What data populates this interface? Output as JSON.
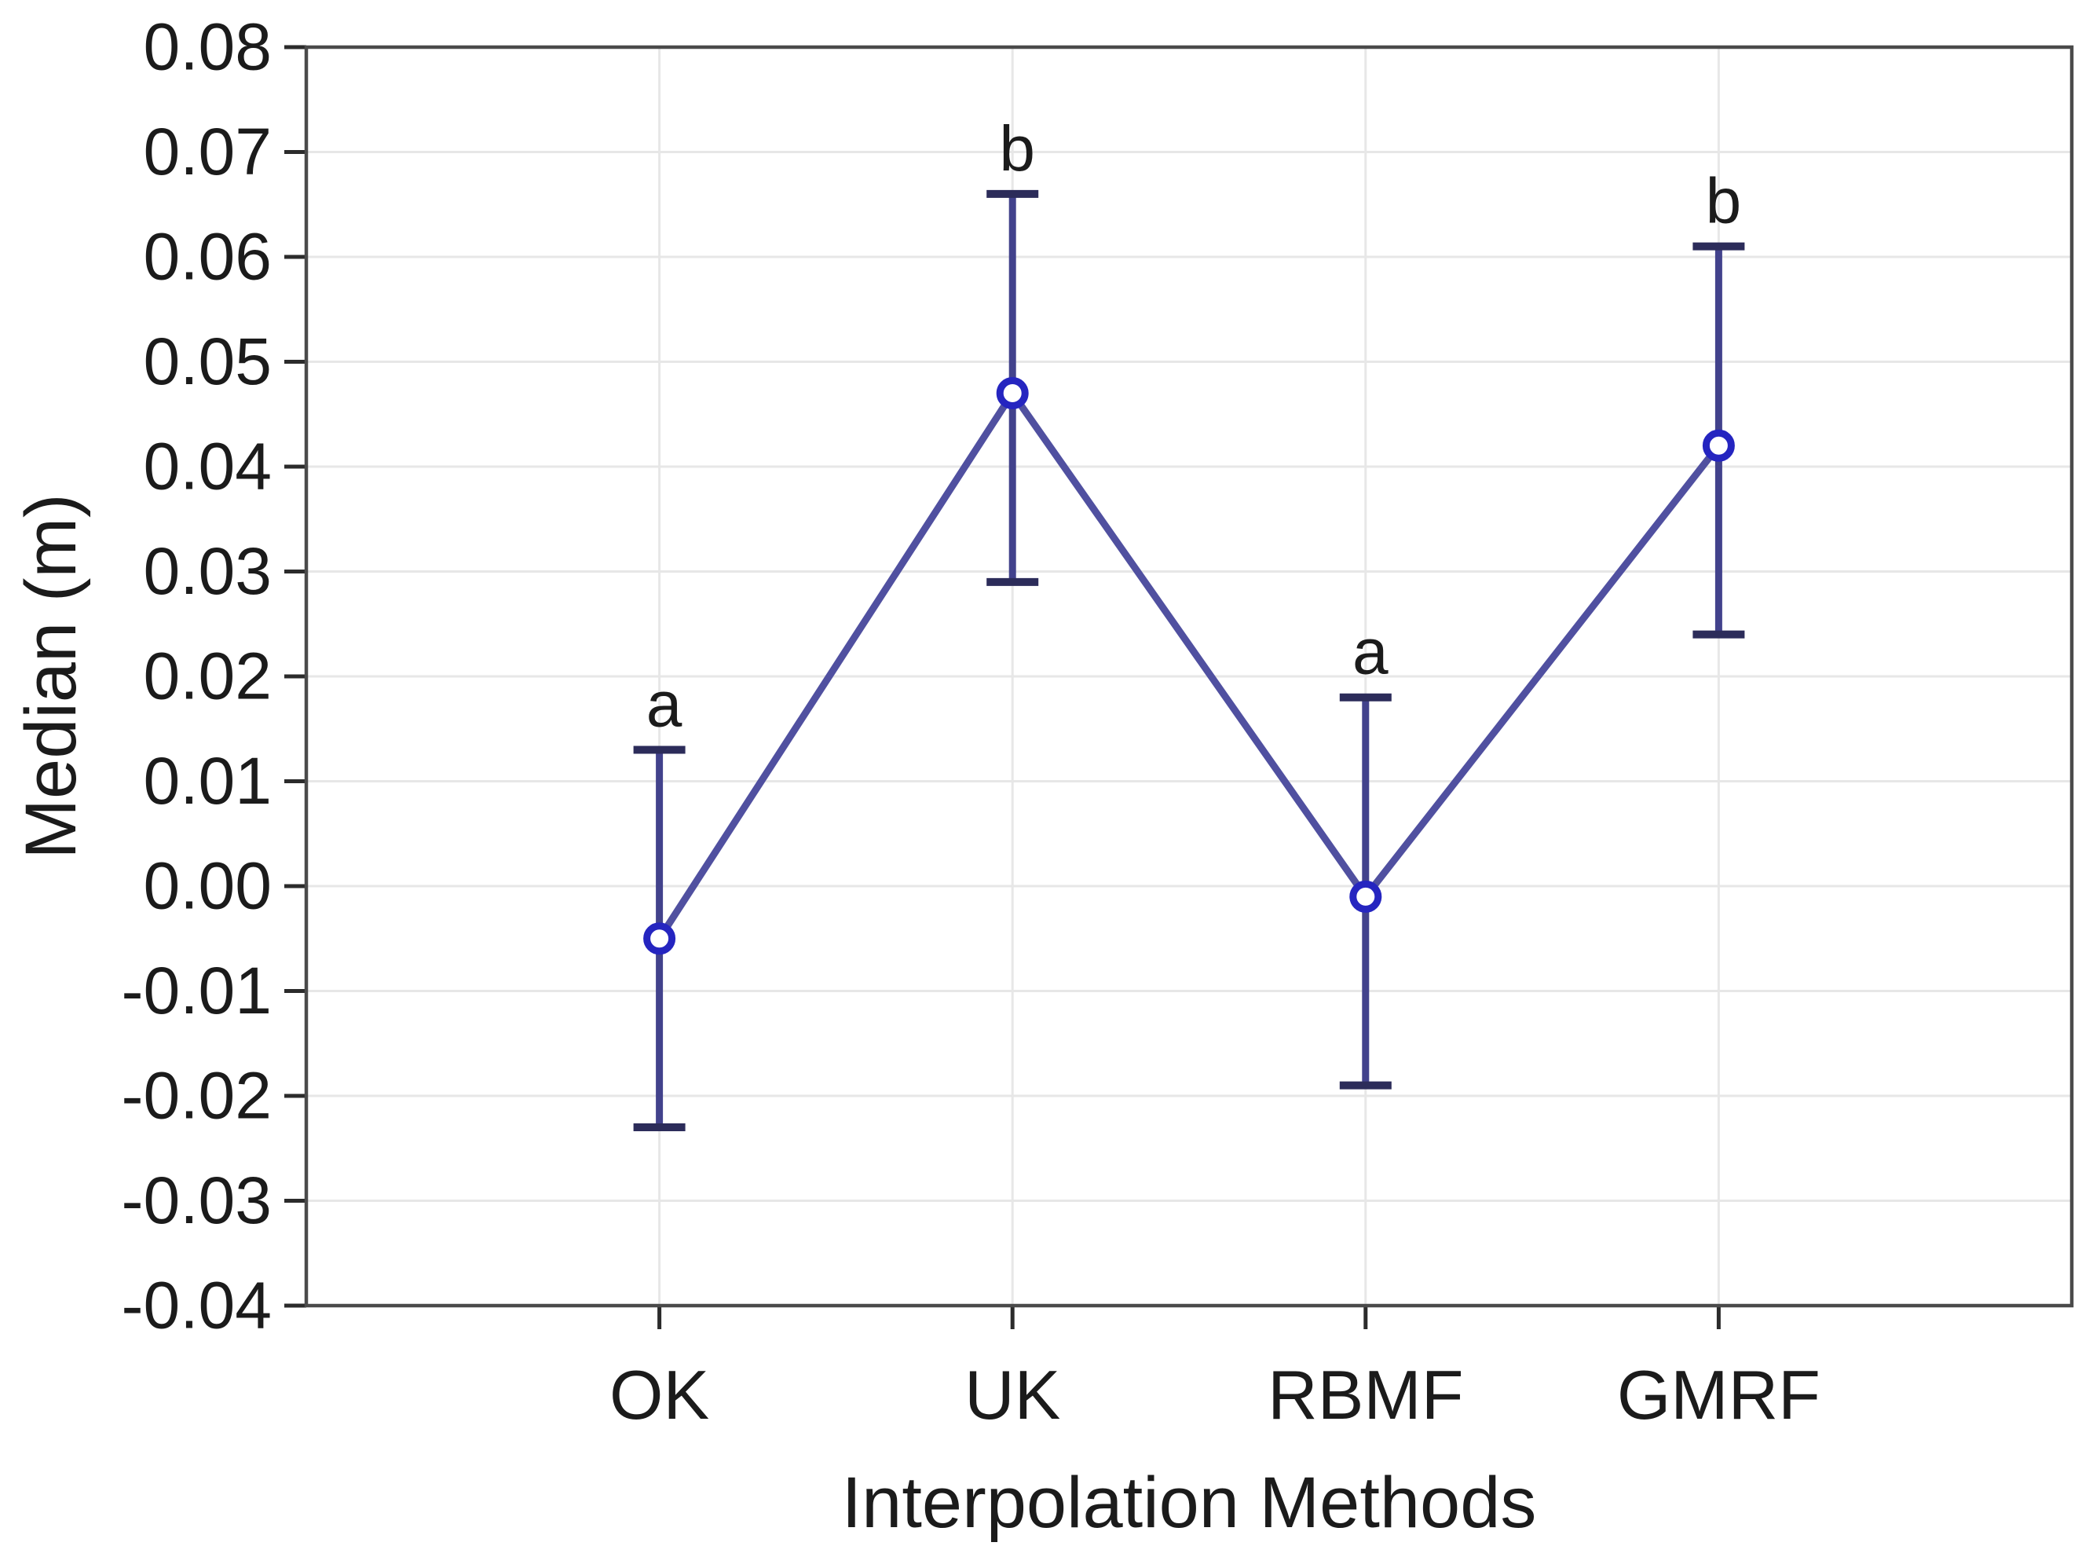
{
  "chart_data": {
    "type": "line",
    "subtype": "median-with-error-bars",
    "title": "",
    "xlabel": "Interpolation Methods",
    "ylabel": "Median (m)",
    "ylim": [
      -0.04,
      0.08
    ],
    "ytick_step": 0.01,
    "ytick_labels": [
      "0.08",
      "0.07",
      "0.06",
      "0.05",
      "0.04",
      "0.03",
      "0.02",
      "0.01",
      "0.00",
      "-0.01",
      "-0.02",
      "-0.03",
      "-0.04"
    ],
    "categories": [
      "OK",
      "UK",
      "RBMF",
      "GMRF"
    ],
    "grid": true,
    "legend": false,
    "series": [
      {
        "name": "Median",
        "points": [
          {
            "category": "OK",
            "median": -0.005,
            "ci_low": -0.023,
            "ci_high": 0.013,
            "group_letter": "a"
          },
          {
            "category": "UK",
            "median": 0.047,
            "ci_low": 0.029,
            "ci_high": 0.066,
            "group_letter": "b"
          },
          {
            "category": "RBMF",
            "median": -0.001,
            "ci_low": -0.019,
            "ci_high": 0.018,
            "group_letter": "a"
          },
          {
            "category": "GMRF",
            "median": 0.042,
            "ci_low": 0.024,
            "ci_high": 0.061,
            "group_letter": "b"
          }
        ]
      }
    ],
    "colors": {
      "line": "#5050a0",
      "error_line": "#42428c",
      "error_cap": "#2c2c5a",
      "marker_stroke": "#2525c0",
      "marker_fill": "#ffffff",
      "grid": "#e7e7e7",
      "frame": "#4a4a4a",
      "tick": "#2b2b2b",
      "text": "#1b1b1b",
      "background": "#ffffff"
    }
  }
}
